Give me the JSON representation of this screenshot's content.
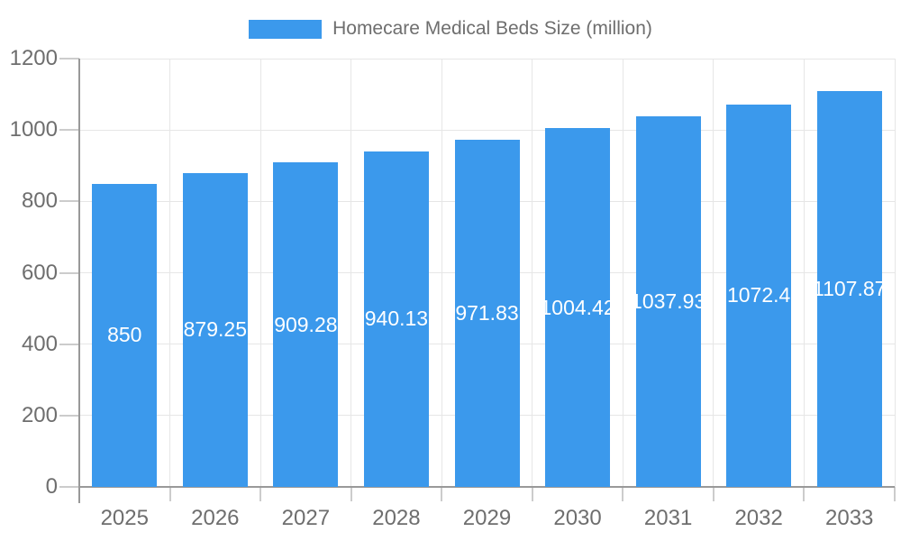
{
  "legend": {
    "label": "Homecare Medical Beds Size (million)"
  },
  "colors": {
    "bar": "#3b99ec",
    "bar_label": "#ffffff",
    "grid": "#e6e6e6",
    "axis": "#999999",
    "tick": "#cccccc",
    "text": "#6e6e6e"
  },
  "chart_data": {
    "type": "bar",
    "title": "Homecare Medical Beds Size (million)",
    "categories": [
      "2025",
      "2026",
      "2027",
      "2028",
      "2029",
      "2030",
      "2031",
      "2032",
      "2033"
    ],
    "values": [
      850,
      879.25,
      909.28,
      940.13,
      971.83,
      1004.42,
      1037.93,
      1072.4,
      1107.87
    ],
    "bar_labels": [
      "850",
      "879.25",
      "909.28",
      "940.13",
      "971.83",
      "1004.42",
      "1037.93",
      "1072.4",
      "1107.87"
    ],
    "xlabel": "",
    "ylabel": "",
    "ylim": [
      0,
      1200
    ],
    "yticks": [
      0,
      200,
      400,
      600,
      800,
      1000,
      1200
    ],
    "grid": true,
    "legend_position": "top"
  }
}
